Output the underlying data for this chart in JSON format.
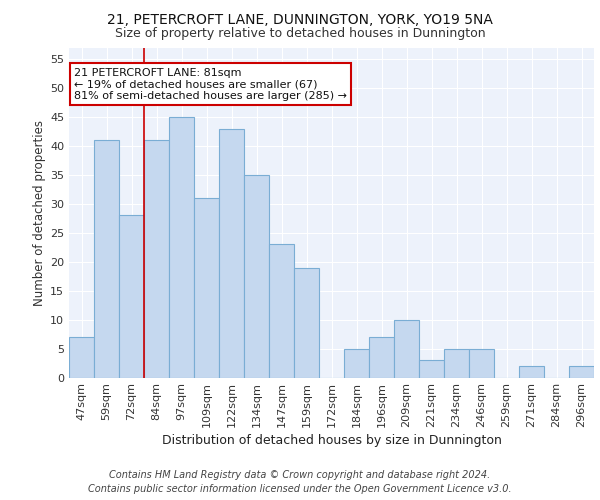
{
  "title1": "21, PETERCROFT LANE, DUNNINGTON, YORK, YO19 5NA",
  "title2": "Size of property relative to detached houses in Dunnington",
  "xlabel": "Distribution of detached houses by size in Dunnington",
  "ylabel": "Number of detached properties",
  "categories": [
    "47sqm",
    "59sqm",
    "72sqm",
    "84sqm",
    "97sqm",
    "109sqm",
    "122sqm",
    "134sqm",
    "147sqm",
    "159sqm",
    "172sqm",
    "184sqm",
    "196sqm",
    "209sqm",
    "221sqm",
    "234sqm",
    "246sqm",
    "259sqm",
    "271sqm",
    "284sqm",
    "296sqm"
  ],
  "values": [
    7,
    41,
    28,
    41,
    45,
    31,
    43,
    35,
    23,
    19,
    0,
    5,
    7,
    10,
    3,
    5,
    5,
    0,
    2,
    0,
    2
  ],
  "bar_color": "#c5d8ef",
  "bar_edge_color": "#7aadd4",
  "vline_x": 2.5,
  "vline_color": "#cc0000",
  "ylim": [
    0,
    57
  ],
  "yticks": [
    0,
    5,
    10,
    15,
    20,
    25,
    30,
    35,
    40,
    45,
    50,
    55
  ],
  "annotation_line1": "21 PETERCROFT LANE: 81sqm",
  "annotation_line2": "← 19% of detached houses are smaller (67)",
  "annotation_line3": "81% of semi-detached houses are larger (285) →",
  "annotation_box_color": "#ffffff",
  "annotation_border_color": "#cc0000",
  "footer_line1": "Contains HM Land Registry data © Crown copyright and database right 2024.",
  "footer_line2": "Contains public sector information licensed under the Open Government Licence v3.0.",
  "background_color": "#edf2fb",
  "grid_color": "#ffffff",
  "title1_fontsize": 10,
  "title2_fontsize": 9,
  "xlabel_fontsize": 9,
  "ylabel_fontsize": 8.5,
  "tick_fontsize": 8,
  "footer_fontsize": 7
}
